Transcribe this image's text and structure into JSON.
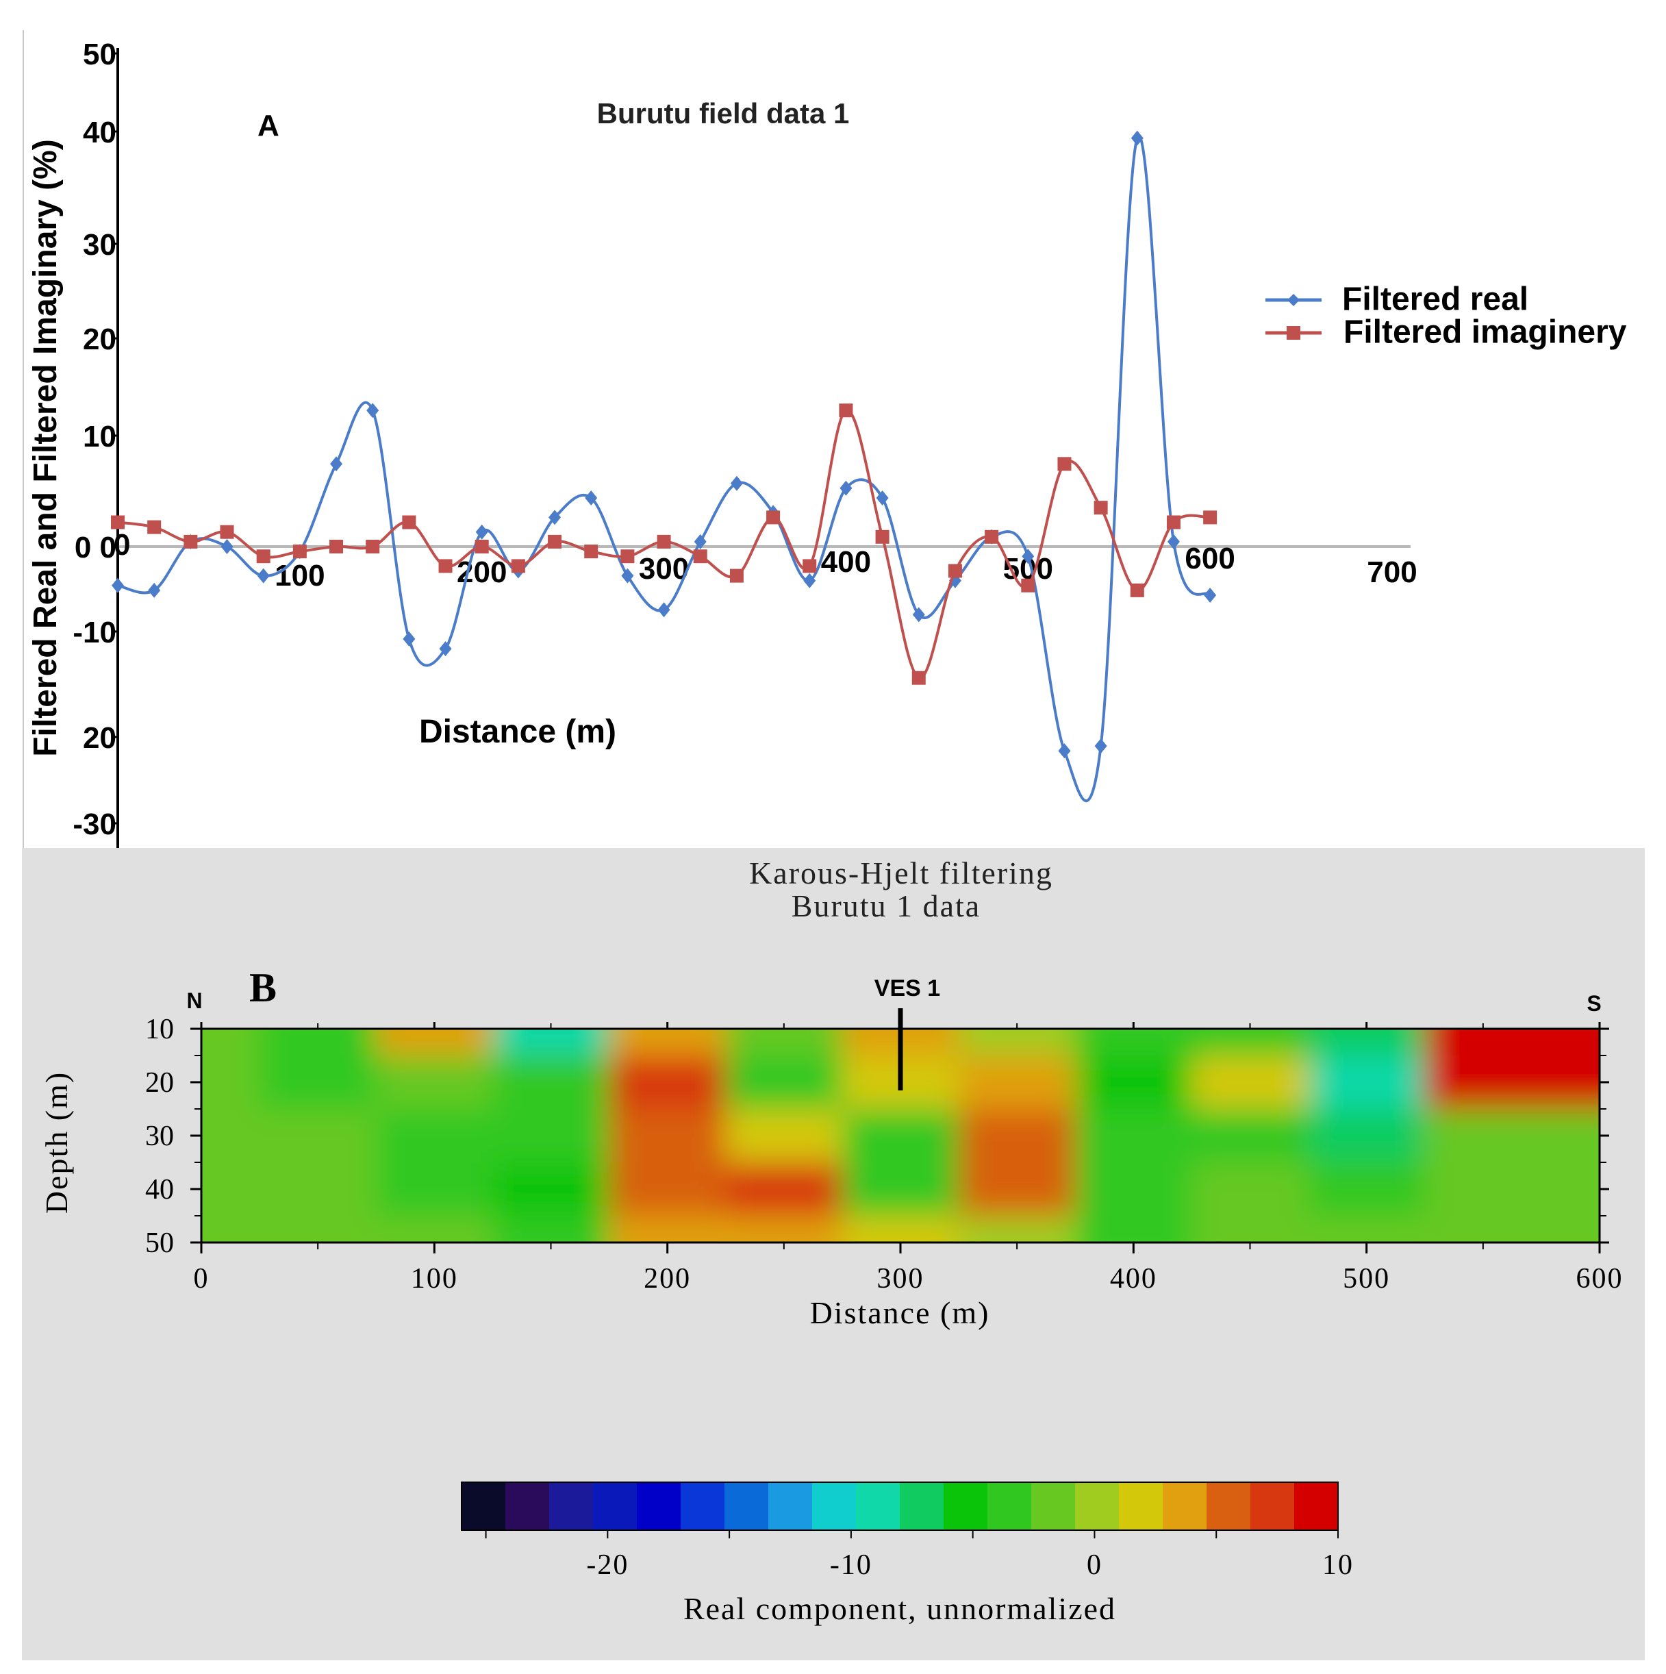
{
  "chart_data": [
    {
      "panel": "A",
      "type": "line",
      "panel_label": "A",
      "title": "Burutu field data 1",
      "xlabel": "Distance (m)",
      "ylabel": "Filtered Real and Filtered Imaginary (%)",
      "xlim": [
        0,
        700
      ],
      "ylim": [
        -30,
        50
      ],
      "x_ticks": [
        "0",
        "100",
        "200",
        "300",
        "400",
        "500",
        "600",
        "700"
      ],
      "y_ticks": [
        "50",
        "40",
        "30",
        "20",
        "10",
        "0 0",
        "-10",
        "20",
        "-30"
      ],
      "legend_position": "right",
      "series": [
        {
          "name": "Filtered real",
          "color": "#4a7cc9",
          "marker": "diamond",
          "x": [
            0,
            20,
            40,
            60,
            80,
            100,
            120,
            140,
            160,
            180,
            200,
            220,
            240,
            260,
            280,
            300,
            320,
            340,
            360,
            380,
            400,
            420,
            440,
            460,
            480,
            500,
            520,
            540,
            560,
            580,
            600
          ],
          "values": [
            -4,
            -4.5,
            0.5,
            0,
            -3,
            -0.5,
            8.5,
            14,
            -9.5,
            -10.5,
            1.5,
            -2.5,
            3,
            5,
            -3,
            -6.5,
            0.5,
            6.5,
            3.5,
            -3.5,
            6,
            5,
            -7,
            -3.5,
            1,
            -1,
            -21,
            -20.5,
            42,
            0.5,
            -5
          ]
        },
        {
          "name": "Filtered imaginery",
          "color": "#c0504d",
          "marker": "square",
          "x": [
            0,
            20,
            40,
            60,
            80,
            100,
            120,
            140,
            160,
            180,
            200,
            220,
            240,
            260,
            280,
            300,
            320,
            340,
            360,
            380,
            400,
            420,
            440,
            460,
            480,
            500,
            520,
            540,
            560,
            580,
            600
          ],
          "values": [
            2.5,
            2,
            0.5,
            1.5,
            -1,
            -0.5,
            0,
            0,
            2.5,
            -2,
            0,
            -2,
            0.5,
            -0.5,
            -1,
            0.5,
            -1,
            -3,
            3,
            -2,
            14,
            1,
            -13.5,
            -2.5,
            1,
            -4,
            8.5,
            4,
            -4.5,
            2.5,
            3
          ]
        }
      ]
    },
    {
      "panel": "B",
      "type": "heatmap",
      "panel_label": "B",
      "title": "Karous-Hjelt filtering",
      "subtitle": "Burutu 1 data",
      "xlabel": "Distance (m)",
      "ylabel": "Depth (m)",
      "xlim": [
        0,
        600
      ],
      "ylim": [
        10,
        50
      ],
      "x_ticks": [
        "0",
        "100",
        "200",
        "300",
        "400",
        "500",
        "600"
      ],
      "y_ticks": [
        "10",
        "20",
        "30",
        "40",
        "50"
      ],
      "annotations": [
        "N",
        "S",
        "VES 1"
      ],
      "annotation_positions": {
        "VES 1": 300
      },
      "colorbar": {
        "label": "Real component, unnormalized",
        "range": [
          -26,
          10
        ],
        "ticks": [
          "-20",
          "-10",
          "0",
          "10"
        ],
        "colors": [
          "#0a0a2a",
          "#2a0a5a",
          "#1a1a9a",
          "#0a1aba",
          "#0000c8",
          "#0a38d8",
          "#0a6ad8",
          "#1a9ae0",
          "#10cece",
          "#10d8a8",
          "#10cc60",
          "#0ac40a",
          "#30c820",
          "#66c820",
          "#a0cc20",
          "#d4c80a",
          "#e0a010",
          "#d86010",
          "#d83810",
          "#d40000"
        ]
      },
      "grid_columns": [
        0,
        50,
        100,
        150,
        200,
        250,
        300,
        350,
        400,
        450,
        500,
        550,
        600
      ],
      "grid_rows": [
        10,
        20,
        30,
        40,
        50
      ],
      "values": [
        [
          -1,
          -3,
          4,
          -9,
          4,
          -2,
          3,
          0,
          -3,
          -4,
          -8,
          10,
          10
        ],
        [
          -1,
          -3,
          -2,
          -4,
          8,
          -3,
          1,
          4,
          -5,
          2,
          -9,
          10,
          10
        ],
        [
          -1,
          -1,
          -4,
          -4,
          6,
          1,
          -3,
          6,
          -4,
          -4,
          -8,
          -1,
          -1
        ],
        [
          -1,
          -1,
          -3,
          -5,
          6,
          7,
          -3,
          5,
          -4,
          -2,
          -3,
          -1,
          -1
        ],
        [
          -1,
          -1,
          -1,
          -3,
          4,
          3,
          1,
          0,
          -3,
          -2,
          -1,
          -1,
          -1
        ]
      ]
    }
  ]
}
